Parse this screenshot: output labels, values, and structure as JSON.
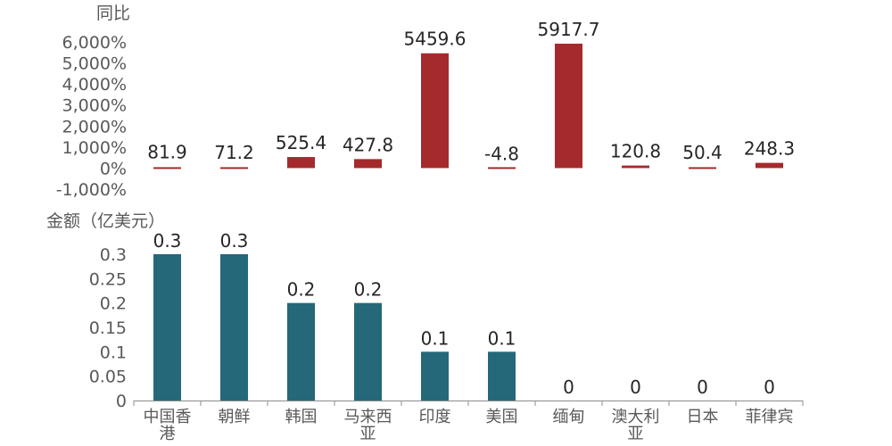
{
  "chart_data": [
    {
      "type": "bar",
      "ylabel": "同比",
      "categories": [
        "中国香港",
        "朝鲜",
        "韩国",
        "马来西亚",
        "印度",
        "美国",
        "缅甸",
        "澳大利亚",
        "日本",
        "菲律宾"
      ],
      "values": [
        81.9,
        71.2,
        525.4,
        427.8,
        5459.6,
        -4.8,
        5917.7,
        120.8,
        50.4,
        248.3
      ],
      "data_labels": [
        "81.9",
        "71.2",
        "525.4",
        "427.8",
        "5459.6",
        "-4.8",
        "5917.7",
        "120.8",
        "50.4",
        "248.3"
      ],
      "yticks": [
        "-1,000%",
        "0%",
        "1,000%",
        "2,000%",
        "3,000%",
        "4,000%",
        "5,000%",
        "6,000%"
      ],
      "ytick_values": [
        -1000,
        0,
        1000,
        2000,
        3000,
        4000,
        5000,
        6000
      ],
      "ylim": [
        -1000,
        6000
      ],
      "grid": false,
      "color": "#A52A2D"
    },
    {
      "type": "bar",
      "ylabel": "金额（亿美元）",
      "categories": [
        "中国香港",
        "朝鲜",
        "韩国",
        "马来西亚",
        "印度",
        "美国",
        "缅甸",
        "澳大利亚",
        "日本",
        "菲律宾"
      ],
      "category_lines": [
        [
          "中国香",
          "港"
        ],
        [
          "朝鲜"
        ],
        [
          "韩国"
        ],
        [
          "马来西",
          "亚"
        ],
        [
          "印度"
        ],
        [
          "美国"
        ],
        [
          "缅甸"
        ],
        [
          "澳大利",
          "亚"
        ],
        [
          "日本"
        ],
        [
          "菲律宾"
        ]
      ],
      "values": [
        0.3,
        0.3,
        0.2,
        0.2,
        0.1,
        0.1,
        0,
        0,
        0,
        0
      ],
      "data_labels": [
        "0.3",
        "0.3",
        "0.2",
        "0.2",
        "0.1",
        "0.1",
        "0",
        "0",
        "0",
        "0"
      ],
      "yticks": [
        "0",
        "0.05",
        "0.1",
        "0.15",
        "0.2",
        "0.25",
        "0.3"
      ],
      "ytick_values": [
        0,
        0.05,
        0.1,
        0.15,
        0.2,
        0.25,
        0.3
      ],
      "ylim": [
        0,
        0.3
      ],
      "grid": false,
      "color": "#256879"
    }
  ]
}
